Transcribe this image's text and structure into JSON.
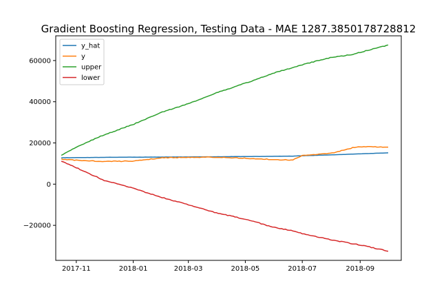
{
  "chart_data": {
    "type": "line",
    "title": "Gradient Boosting Regression, Testing Data - MAE 1287.3850178728812",
    "xlabel": "",
    "ylabel": "",
    "x_ticks": [
      "2017-11",
      "2018-01",
      "2018-03",
      "2018-05",
      "2018-07",
      "2018-09"
    ],
    "x_tick_dates": [
      "2017-11-01",
      "2018-01-01",
      "2018-03-01",
      "2018-05-01",
      "2018-07-01",
      "2018-09-01"
    ],
    "x_range": [
      "2017-10-10",
      "2018-10-15"
    ],
    "y_ticks": [
      -20000,
      0,
      20000,
      40000,
      60000
    ],
    "y_tick_labels": [
      "−20000",
      "0",
      "20000",
      "40000",
      "60000"
    ],
    "ylim": [
      -37000,
      72000
    ],
    "grid": false,
    "legend": "top-left",
    "x": [
      "2017-10-16",
      "2017-11-01",
      "2017-12-01",
      "2018-01-01",
      "2018-02-01",
      "2018-03-01",
      "2018-04-01",
      "2018-05-01",
      "2018-06-01",
      "2018-06-20",
      "2018-07-01",
      "2018-08-01",
      "2018-08-25",
      "2018-09-01",
      "2018-10-01"
    ],
    "series": [
      {
        "name": "y_hat",
        "color": "#1f77b4",
        "values": [
          12800,
          12900,
          13000,
          13100,
          13150,
          13200,
          13300,
          13400,
          13500,
          13600,
          13800,
          14200,
          14600,
          14700,
          15200
        ]
      },
      {
        "name": "y",
        "color": "#ff7f0e",
        "values": [
          12100,
          11600,
          11000,
          11200,
          12800,
          13000,
          13100,
          12600,
          11900,
          11700,
          13800,
          15000,
          17800,
          18200,
          18000
        ]
      },
      {
        "name": "upper",
        "color": "#2ca02c",
        "values": [
          14000,
          18000,
          24000,
          29000,
          35000,
          39000,
          44500,
          49000,
          54000,
          56500,
          58000,
          61500,
          63000,
          64000,
          67500
        ]
      },
      {
        "name": "lower",
        "color": "#d62728",
        "values": [
          11300,
          8000,
          1800,
          -2000,
          -6500,
          -10000,
          -14000,
          -17000,
          -21000,
          -22500,
          -24000,
          -27000,
          -29000,
          -29500,
          -32500
        ]
      }
    ]
  }
}
